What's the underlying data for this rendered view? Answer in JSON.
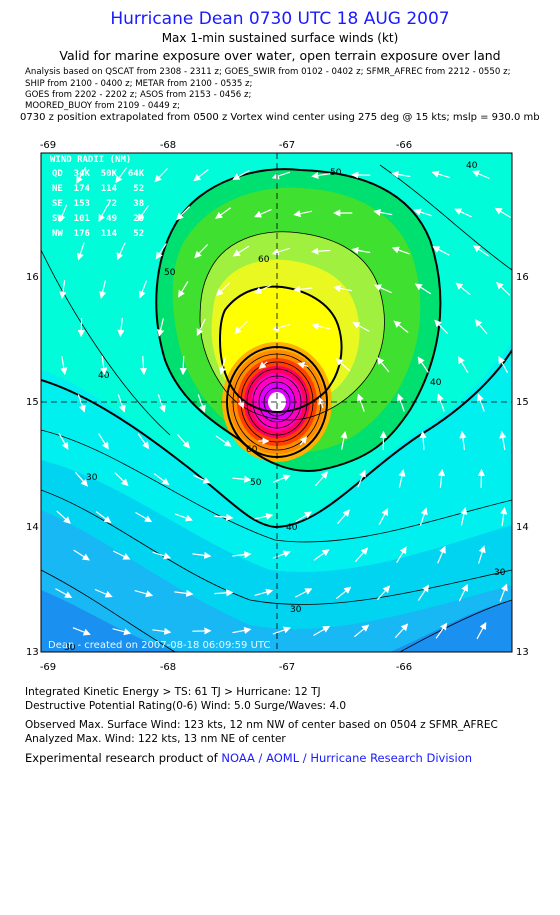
{
  "header": {
    "title": "Hurricane Dean 0730 UTC 18 AUG 2007",
    "subtitle": "Max 1-min sustained surface winds (kt)",
    "valid": "Valid for marine exposure over water, open terrain exposure over land"
  },
  "analysis_notes": [
    "Analysis based on  QSCAT from 2308 - 2311 z;  GOES_SWIR from 0102 - 0402 z;   SFMR_AFREC from 2212 - 0550 z;",
    "SHIP from 2100 - 0400 z;  METAR from 2100 - 0535 z;",
    "GOES from 2202 - 2202 z;  ASOS from 2153 - 0456 z;",
    "MOORED_BUOY from 2109 - 0449 z;"
  ],
  "position_note": "0730 z position extrapolated from 0500 z Vortex wind center using 275 deg @ 15 kts; mslp = 930.0 mb",
  "map": {
    "lon_ticks": [
      "-69",
      "-68",
      "-67",
      "-66"
    ],
    "lat_ticks": [
      "16",
      "15",
      "14",
      "13"
    ],
    "center": {
      "lon": -67.0,
      "lat": 15.0
    },
    "contour_labels": [
      "30",
      "40",
      "50",
      "60",
      "50",
      "40",
      "30",
      "40",
      "30",
      "30",
      "40",
      "50",
      "60",
      "40"
    ],
    "wind_radii": {
      "header": "WIND RADII (NM)",
      "cols": "QD  34K  50K  64K",
      "rows": [
        "NE  174  114   52",
        "SE  153   72   38",
        "SW  101   49   29",
        "NW  176  114   52"
      ]
    },
    "created": "Dean - created on 2007-08-18 06:09:59 UTC",
    "colors": {
      "outer": "#12a8f5",
      "mid": "#00e8ee",
      "green": "#18d818",
      "yellow": "#ffff00",
      "orange": "#ff8c00",
      "core": "#ff00ff"
    }
  },
  "footer": {
    "ike": "Integrated Kinetic Energy > TS: 61 TJ   > Hurricane: 12 TJ",
    "dpr": "Destructive Potential Rating(0-6)   Wind: 5.0 Surge/Waves: 4.0",
    "observed": "Observed Max. Surface Wind: 123 kts, 12 nm NW of center based on 0504 z SFMR_AFREC",
    "analyzed": "Analyzed Max. Wind: 122 kts, 13 nm NE of center",
    "credit_prefix": "Experimental research product of",
    "credit_link": "NOAA / AOML / Hurricane Research Division"
  }
}
